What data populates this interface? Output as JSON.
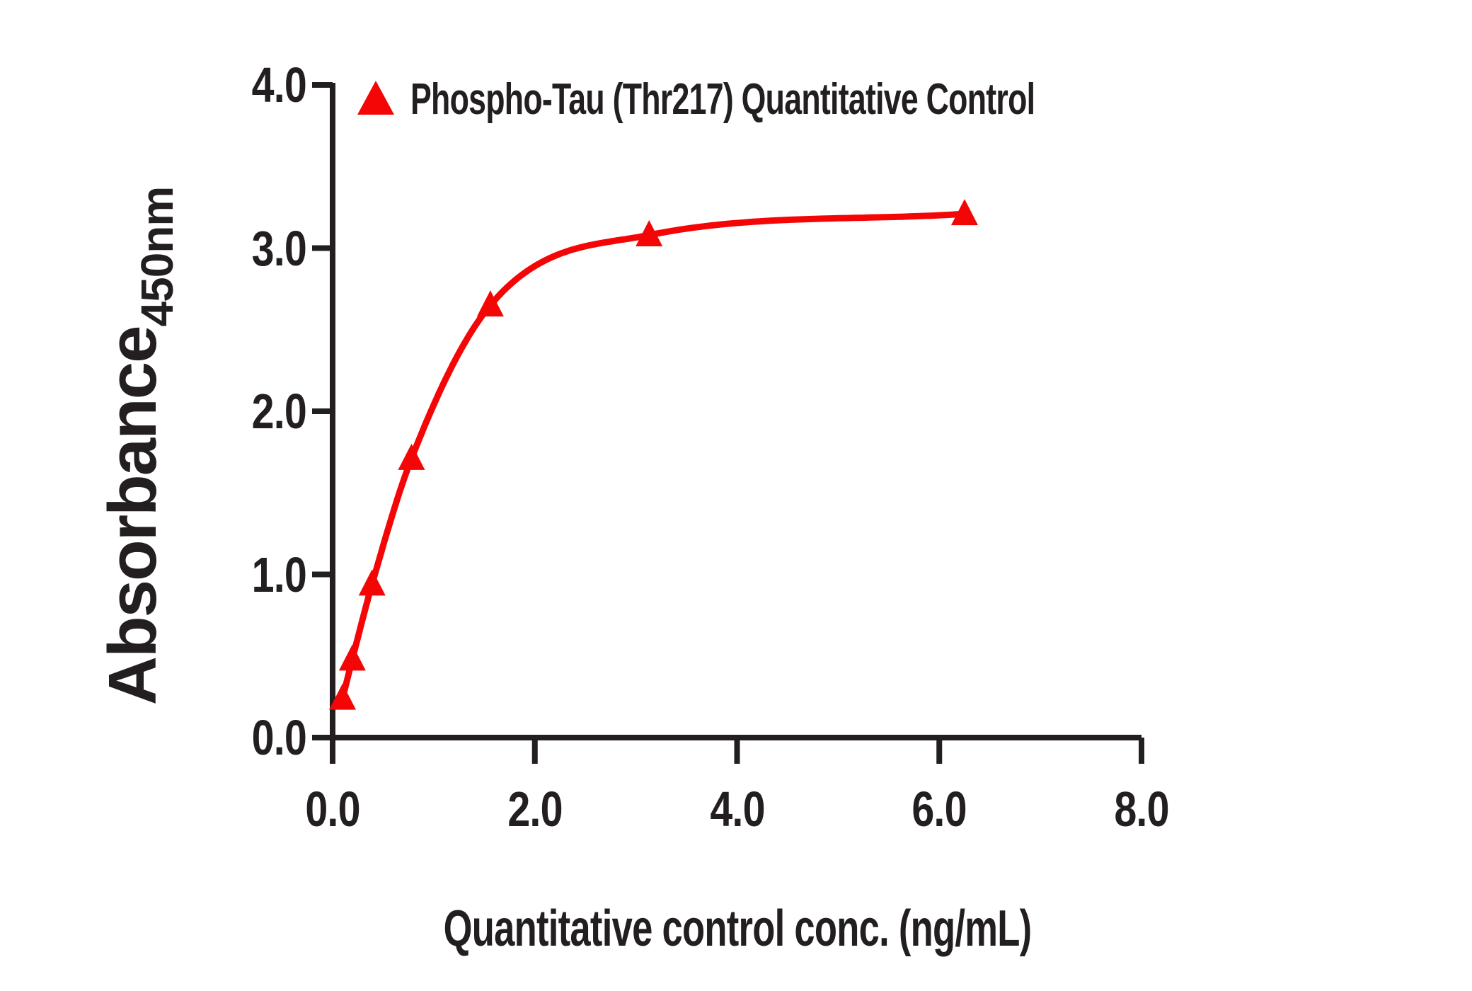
{
  "chart_data": {
    "type": "line",
    "title": "",
    "xlabel": "Quantitative control conc. (ng/mL)",
    "ylabel": "Absorbance",
    "ylabel_subscript": "450nm",
    "xlim": [
      0,
      8
    ],
    "ylim": [
      0,
      4
    ],
    "xticks": [
      0,
      2,
      4,
      6,
      8
    ],
    "yticks": [
      0,
      1,
      2,
      3,
      4
    ],
    "xtick_labels": [
      "0.0",
      "2.0",
      "4.0",
      "6.0",
      "8.0"
    ],
    "ytick_labels": [
      "0.0",
      "1.0",
      "2.0",
      "3.0",
      "4.0"
    ],
    "grid": false,
    "legend_position": "top-left",
    "series": [
      {
        "name": "Phospho-Tau (Thr217) Quantitative Control",
        "marker": "triangle",
        "x": [
          0.098,
          0.195,
          0.39,
          0.78,
          1.56,
          3.13,
          6.25
        ],
        "y": [
          0.24,
          0.48,
          0.94,
          1.71,
          2.65,
          3.08,
          3.21
        ]
      }
    ],
    "colors": {
      "accent": "#F40606",
      "axis": "#231F20"
    }
  }
}
